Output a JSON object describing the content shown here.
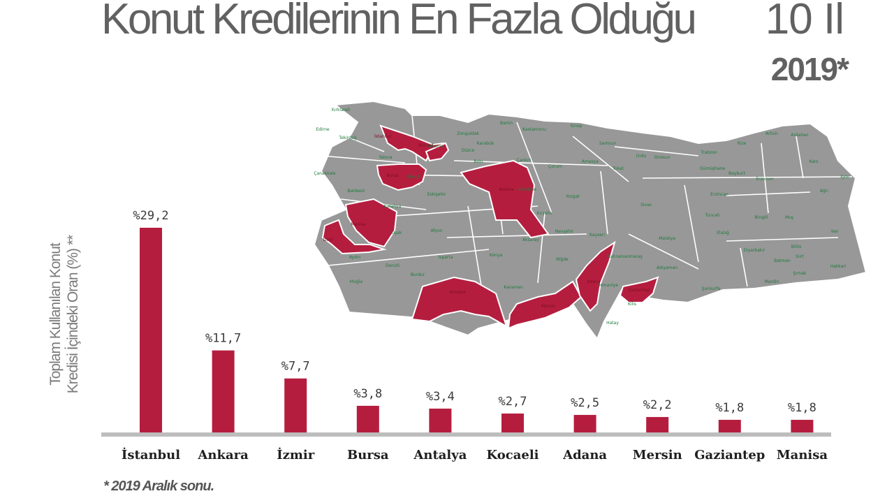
{
  "header": {
    "title": "Konut Kredilerinin En Fazla Olduğu",
    "title_count": "10 İl",
    "year": "2019*"
  },
  "footnote": "* 2019 Aralık sonu.",
  "colors": {
    "bar": "#b51d3e",
    "map_base": "#989898",
    "baseline": "#bdbdbd",
    "title": "#616161"
  },
  "map": {
    "highlighted": [
      "İstanbul",
      "Ankara",
      "İzmir",
      "Bursa",
      "Antalya",
      "Kocaeli",
      "Adana",
      "Mersin",
      "Gaziantep",
      "Manisa"
    ],
    "labels": [
      "Kırklareli",
      "Edirne",
      "Tekirdağ",
      "İstanbul",
      "Kocaeli",
      "Sakarya",
      "Yalova",
      "Çanakkale",
      "Bursa",
      "Bilecik",
      "Balıkesir",
      "Kütahya",
      "Eskişehir",
      "Manisa",
      "İzmir",
      "Uşak",
      "Afyon",
      "Aydın",
      "Denizli",
      "Muğla",
      "Burdur",
      "Isparta",
      "Antalya",
      "Bartın",
      "Zonguldak",
      "Karabük",
      "Kastamonu",
      "Sinop",
      "Düzce",
      "Bolu",
      "Çankırı",
      "Ankara",
      "Kırıkkale",
      "Kırşehir",
      "Konya",
      "Karaman",
      "Aksaray",
      "Niğde",
      "Nevşehir",
      "Yozgat",
      "Çorum",
      "Amasya",
      "Samsun",
      "Tokat",
      "Ordu",
      "Giresun",
      "Trabzon",
      "Gümüşhane",
      "Bayburt",
      "Rize",
      "Artvin",
      "Ardahan",
      "Kars",
      "Erzurum",
      "Iğdır",
      "Ağrı",
      "Erzincan",
      "Sivas",
      "Tunceli",
      "Bingöl",
      "Muş",
      "Van",
      "Elazığ",
      "Malatya",
      "Kayseri",
      "Kahramanmaraş",
      "Adıyaman",
      "Diyarbakır",
      "Batman",
      "Bitlis",
      "Siirt",
      "Hakkari",
      "Şırnak",
      "Mardin",
      "Şanlıurfa",
      "Osmaniye",
      "Adana",
      "Mersin",
      "Gaziantep",
      "Kilis",
      "Hatay"
    ]
  },
  "chart_data": {
    "type": "bar",
    "ylabel": [
      "Toplam Kullanılan Konut",
      "Kredisi İçindeki Oran (%) **"
    ],
    "categories": [
      "İstanbul",
      "Ankara",
      "İzmir",
      "Bursa",
      "Antalya",
      "Kocaeli",
      "Adana",
      "Mersin",
      "Gaziantep",
      "Manisa"
    ],
    "values": [
      29.2,
      11.7,
      7.7,
      3.8,
      3.4,
      2.7,
      2.5,
      2.2,
      1.8,
      1.8
    ],
    "value_labels": [
      "%29,2",
      "%11,7",
      "%7,7",
      "%3,8",
      "%3,4",
      "%2,7",
      "%2,5",
      "%2,2",
      "%1,8",
      "%1,8"
    ],
    "ylim": [
      0,
      29.2
    ],
    "grid": false,
    "legend": "none"
  }
}
